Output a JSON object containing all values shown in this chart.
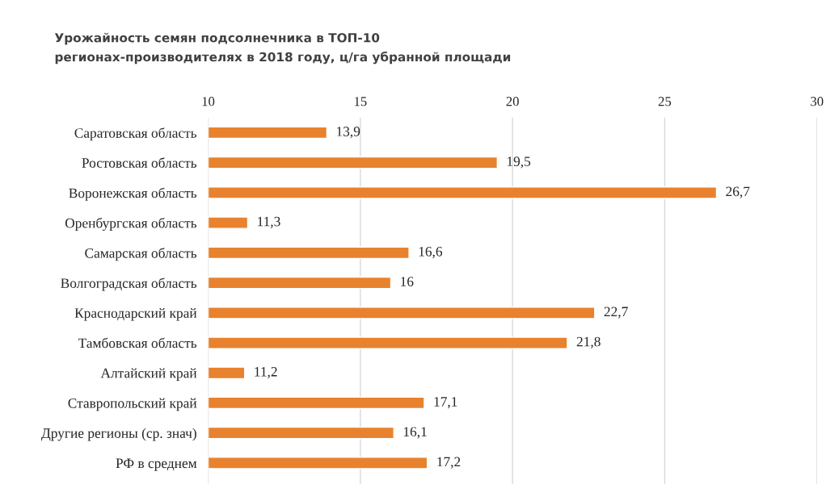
{
  "chart_data": {
    "type": "bar",
    "orientation": "horizontal",
    "title": "Урожайность семян подсолнечника в ТОП-10\nрегионах-производителях в 2018 году, ц/га убранной площади",
    "categories": [
      "Саратовская область",
      "Ростовская область",
      "Воронежская область",
      "Оренбургская область",
      "Самарская область",
      "Волгоградская область",
      "Краснодарский край",
      "Тамбовская область",
      "Алтайский край",
      "Ставропольский край",
      "Другие регионы (ср. знач)",
      "РФ в среднем"
    ],
    "values": [
      13.9,
      19.5,
      26.7,
      11.3,
      16.6,
      16,
      22.7,
      21.8,
      11.2,
      17.1,
      16.1,
      17.2
    ],
    "value_labels": [
      "13,9",
      "19,5",
      "26,7",
      "11,3",
      "16,6",
      "16",
      "22,7",
      "21,8",
      "11,2",
      "17,1",
      "16,1",
      "17,2"
    ],
    "color": "#e8822e",
    "xlim": [
      10,
      30
    ],
    "xticks": [
      10,
      15,
      20,
      25,
      30
    ],
    "grid": "x",
    "legend": false
  }
}
